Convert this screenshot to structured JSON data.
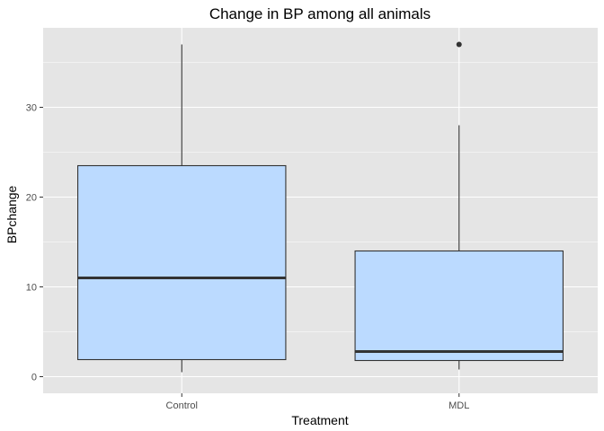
{
  "chart_data": {
    "type": "boxplot",
    "title": "Change in BP among all animals",
    "xlabel": "Treatment",
    "ylabel": "BPchange",
    "categories": [
      "Control",
      "MDL"
    ],
    "yticks": [
      0,
      10,
      20,
      30
    ],
    "ylim": [
      -1.85,
      38.85
    ],
    "grid": true,
    "legend": "none",
    "colors": {
      "panel": "#E5E5E5",
      "grid": "#FFFFFF",
      "box_fill": "#BBDAFF",
      "box_stroke": "#333333",
      "text": "#4D4D4D"
    },
    "boxes": [
      {
        "category": "Control",
        "lower_whisker": 0.5,
        "q1": 1.9,
        "median": 11.0,
        "q3": 23.5,
        "upper_whisker": 37.0,
        "outliers": []
      },
      {
        "category": "MDL",
        "lower_whisker": 0.8,
        "q1": 1.8,
        "median": 2.8,
        "q3": 14.0,
        "upper_whisker": 28.0,
        "outliers": [
          37.0
        ]
      }
    ]
  }
}
